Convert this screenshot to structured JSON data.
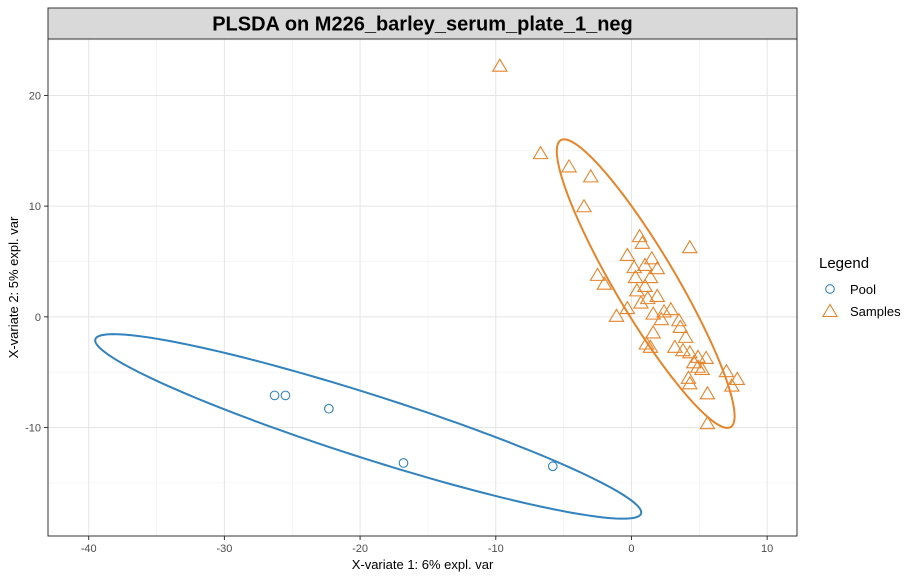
{
  "chart_data": {
    "type": "scatter",
    "title": "PLSDA on M226_barley_serum_plate_1_neg",
    "xlabel": "X-variate 1: 6% expl. var",
    "ylabel": "X-variate 2: 5% expl. var",
    "xlim": [
      -43,
      12.2
    ],
    "ylim": [
      -19.8,
      25.1
    ],
    "xticks": [
      -40,
      -30,
      -20,
      -10,
      0,
      10
    ],
    "yticks": [
      -10,
      0,
      10,
      20
    ],
    "grid": true,
    "legend": {
      "title": "Legend",
      "position": "right"
    },
    "colors": {
      "Pool": "#3182bd",
      "Samples": "#e6842a"
    },
    "series": [
      {
        "name": "Pool",
        "marker": "circle",
        "points": [
          [
            -26.3,
            -7.1
          ],
          [
            -25.5,
            -7.1
          ],
          [
            -22.3,
            -8.3
          ],
          [
            -16.8,
            -13.2
          ],
          [
            -5.8,
            -13.5
          ]
        ]
      },
      {
        "name": "Samples",
        "marker": "triangle",
        "points": [
          [
            -9.7,
            22.6
          ],
          [
            -6.7,
            14.7
          ],
          [
            -4.6,
            13.5
          ],
          [
            -3.0,
            12.6
          ],
          [
            -3.5,
            9.9
          ],
          [
            0.6,
            7.2
          ],
          [
            0.8,
            6.6
          ],
          [
            4.3,
            6.2
          ],
          [
            -0.3,
            5.5
          ],
          [
            1.5,
            5.2
          ],
          [
            1.0,
            4.6
          ],
          [
            0.2,
            4.4
          ],
          [
            1.9,
            4.3
          ],
          [
            -2.5,
            3.7
          ],
          [
            0.3,
            3.5
          ],
          [
            1.4,
            3.5
          ],
          [
            -2.0,
            2.9
          ],
          [
            1.0,
            2.7
          ],
          [
            0.4,
            2.3
          ],
          [
            1.9,
            1.8
          ],
          [
            1.2,
            1.6
          ],
          [
            0.7,
            1.2
          ],
          [
            -0.3,
            0.7
          ],
          [
            2.9,
            0.6
          ],
          [
            2.4,
            0.4
          ],
          [
            1.6,
            0.2
          ],
          [
            -1.1,
            0.0
          ],
          [
            3.5,
            -0.4
          ],
          [
            2.2,
            -0.3
          ],
          [
            3.6,
            -1.0
          ],
          [
            1.6,
            -1.5
          ],
          [
            4.0,
            -1.9
          ],
          [
            1.1,
            -2.5
          ],
          [
            3.2,
            -2.8
          ],
          [
            1.4,
            -2.8
          ],
          [
            3.8,
            -3.1
          ],
          [
            4.3,
            -3.3
          ],
          [
            4.9,
            -3.7
          ],
          [
            5.5,
            -3.8
          ],
          [
            4.6,
            -4.2
          ],
          [
            4.9,
            -4.6
          ],
          [
            5.2,
            -4.8
          ],
          [
            7.0,
            -5.0
          ],
          [
            4.2,
            -5.6
          ],
          [
            7.8,
            -5.7
          ],
          [
            4.3,
            -6.1
          ],
          [
            7.4,
            -6.3
          ],
          [
            5.6,
            -7.0
          ],
          [
            5.6,
            -9.7
          ]
        ]
      }
    ],
    "ellipses": [
      {
        "series": "Pool",
        "cx": -19.4,
        "cy": -9.9,
        "major": 21.6,
        "minor": 2.8,
        "angle": -21.5
      },
      {
        "series": "Samples",
        "cx": 1.05,
        "cy": 3.0,
        "major": 14.4,
        "minor": 2.35,
        "angle": -64.5
      }
    ]
  }
}
